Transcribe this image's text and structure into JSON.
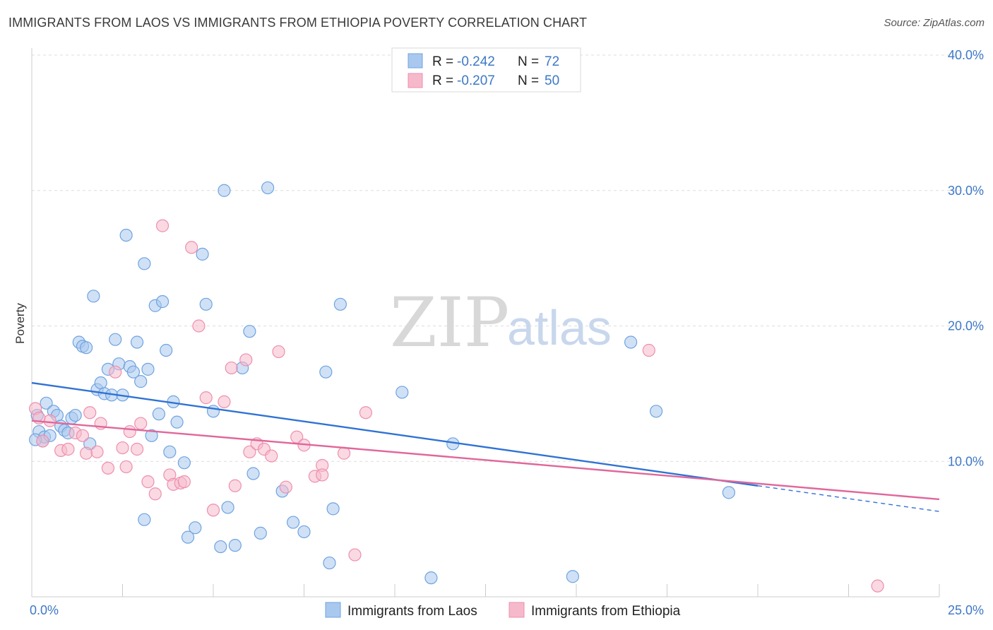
{
  "title": "IMMIGRANTS FROM LAOS VS IMMIGRANTS FROM ETHIOPIA POVERTY CORRELATION CHART",
  "source": "Source: ZipAtlas.com",
  "watermark": {
    "zip": "ZIP",
    "atlas": "atlas"
  },
  "legend": {
    "rows": [
      {
        "r_label": "R = ",
        "r_value": "-0.242",
        "n_label": "N = ",
        "n_value": "72",
        "color": "#a9c8ee"
      },
      {
        "r_label": "R = ",
        "r_value": "-0.207",
        "n_label": "N = ",
        "n_value": "50",
        "color": "#f6b9cc"
      }
    ]
  },
  "chart_data": {
    "type": "scatter",
    "title": "IMMIGRANTS FROM LAOS VS IMMIGRANTS FROM ETHIOPIA POVERTY CORRELATION CHART",
    "xlabel": "",
    "ylabel": "Poverty",
    "xlim": [
      0,
      25
    ],
    "ylim": [
      0,
      40
    ],
    "x_ticks": [
      "0.0%",
      "25.0%"
    ],
    "y_ticks": [
      {
        "value": 10,
        "label": "10.0%"
      },
      {
        "value": 20,
        "label": "20.0%"
      },
      {
        "value": 30,
        "label": "30.0%"
      },
      {
        "value": 40,
        "label": "40.0%"
      }
    ],
    "grid": true,
    "legend_position": "top-center",
    "series": [
      {
        "name": "Immigrants from Laos",
        "color": "#6fa3e0",
        "fill": "#a9c8ee",
        "line_color": "#2f72d4",
        "trend": {
          "x0": 0,
          "y0": 15.8,
          "x1": 20,
          "y1": 8.2,
          "dash_x1": 25,
          "dash_y1": 6.3
        },
        "points": [
          [
            0.15,
            13.4
          ],
          [
            0.2,
            12.2
          ],
          [
            0.3,
            11.5
          ],
          [
            0.35,
            11.8
          ],
          [
            0.4,
            14.3
          ],
          [
            0.5,
            11.9
          ],
          [
            0.6,
            13.7
          ],
          [
            0.7,
            13.4
          ],
          [
            0.8,
            12.6
          ],
          [
            0.9,
            12.3
          ],
          [
            1.0,
            12.1
          ],
          [
            1.1,
            13.2
          ],
          [
            1.2,
            13.4
          ],
          [
            1.3,
            18.8
          ],
          [
            1.4,
            18.5
          ],
          [
            1.5,
            18.4
          ],
          [
            1.6,
            11.3
          ],
          [
            1.7,
            22.2
          ],
          [
            1.8,
            15.3
          ],
          [
            1.9,
            15.8
          ],
          [
            2.0,
            15.0
          ],
          [
            2.1,
            16.8
          ],
          [
            2.2,
            14.9
          ],
          [
            2.3,
            19.0
          ],
          [
            2.4,
            17.2
          ],
          [
            2.5,
            14.9
          ],
          [
            2.6,
            26.7
          ],
          [
            2.7,
            17.0
          ],
          [
            2.8,
            16.6
          ],
          [
            2.9,
            18.8
          ],
          [
            3.0,
            15.9
          ],
          [
            3.1,
            24.6
          ],
          [
            3.2,
            16.8
          ],
          [
            3.3,
            11.9
          ],
          [
            3.4,
            21.5
          ],
          [
            3.5,
            13.5
          ],
          [
            3.6,
            21.8
          ],
          [
            3.7,
            18.2
          ],
          [
            3.8,
            10.7
          ],
          [
            3.9,
            14.4
          ],
          [
            4.0,
            12.9
          ],
          [
            4.2,
            9.9
          ],
          [
            4.3,
            4.4
          ],
          [
            4.5,
            5.1
          ],
          [
            4.7,
            25.3
          ],
          [
            4.8,
            21.6
          ],
          [
            5.0,
            13.7
          ],
          [
            5.2,
            3.7
          ],
          [
            5.3,
            30.0
          ],
          [
            5.4,
            6.6
          ],
          [
            5.6,
            3.8
          ],
          [
            5.8,
            16.9
          ],
          [
            6.0,
            19.6
          ],
          [
            6.1,
            9.1
          ],
          [
            6.3,
            4.7
          ],
          [
            6.5,
            30.2
          ],
          [
            6.9,
            7.8
          ],
          [
            7.2,
            5.5
          ],
          [
            7.5,
            4.8
          ],
          [
            8.1,
            16.6
          ],
          [
            8.3,
            6.5
          ],
          [
            8.5,
            21.6
          ],
          [
            8.2,
            2.5
          ],
          [
            10.2,
            15.1
          ],
          [
            11.0,
            1.4
          ],
          [
            11.6,
            11.3
          ],
          [
            14.9,
            1.5
          ],
          [
            16.5,
            18.8
          ],
          [
            17.2,
            13.7
          ],
          [
            19.2,
            7.7
          ],
          [
            3.1,
            5.7
          ],
          [
            0.1,
            11.6
          ]
        ]
      },
      {
        "name": "Immigrants from Ethiopia",
        "color": "#ee8fad",
        "fill": "#f6b9cc",
        "line_color": "#e0679a",
        "trend": {
          "x0": 0,
          "y0": 13.0,
          "x1": 25,
          "y1": 7.2
        },
        "points": [
          [
            0.1,
            13.9
          ],
          [
            0.3,
            11.5
          ],
          [
            0.5,
            13.0
          ],
          [
            0.8,
            10.8
          ],
          [
            1.0,
            10.9
          ],
          [
            1.2,
            12.1
          ],
          [
            1.4,
            11.9
          ],
          [
            1.5,
            10.6
          ],
          [
            1.6,
            13.6
          ],
          [
            1.8,
            10.7
          ],
          [
            1.9,
            12.8
          ],
          [
            2.1,
            9.5
          ],
          [
            2.3,
            16.6
          ],
          [
            2.5,
            11.0
          ],
          [
            2.6,
            9.6
          ],
          [
            2.7,
            12.2
          ],
          [
            2.9,
            10.9
          ],
          [
            3.0,
            12.8
          ],
          [
            3.2,
            8.5
          ],
          [
            3.4,
            7.6
          ],
          [
            3.6,
            27.4
          ],
          [
            3.8,
            9.0
          ],
          [
            3.9,
            8.3
          ],
          [
            4.1,
            8.4
          ],
          [
            4.2,
            8.5
          ],
          [
            4.4,
            25.8
          ],
          [
            4.6,
            20.0
          ],
          [
            4.8,
            14.7
          ],
          [
            5.0,
            6.4
          ],
          [
            5.3,
            14.4
          ],
          [
            5.5,
            16.9
          ],
          [
            5.6,
            8.2
          ],
          [
            5.9,
            17.5
          ],
          [
            6.0,
            10.7
          ],
          [
            6.2,
            11.3
          ],
          [
            6.4,
            10.9
          ],
          [
            6.6,
            10.4
          ],
          [
            6.8,
            18.1
          ],
          [
            7.0,
            8.1
          ],
          [
            7.3,
            11.8
          ],
          [
            7.5,
            11.2
          ],
          [
            7.8,
            8.9
          ],
          [
            8.0,
            9.7
          ],
          [
            8.0,
            9.0
          ],
          [
            8.6,
            10.6
          ],
          [
            8.9,
            3.1
          ],
          [
            9.2,
            13.6
          ],
          [
            17.0,
            18.2
          ],
          [
            23.3,
            0.8
          ],
          [
            0.2,
            13.2
          ]
        ]
      }
    ]
  },
  "bottom_legend": [
    {
      "label": "Immigrants from Laos",
      "color": "#a9c8ee",
      "stroke": "#6fa3e0"
    },
    {
      "label": "Immigrants from Ethiopia",
      "color": "#f6b9cc",
      "stroke": "#ee8fad"
    }
  ]
}
